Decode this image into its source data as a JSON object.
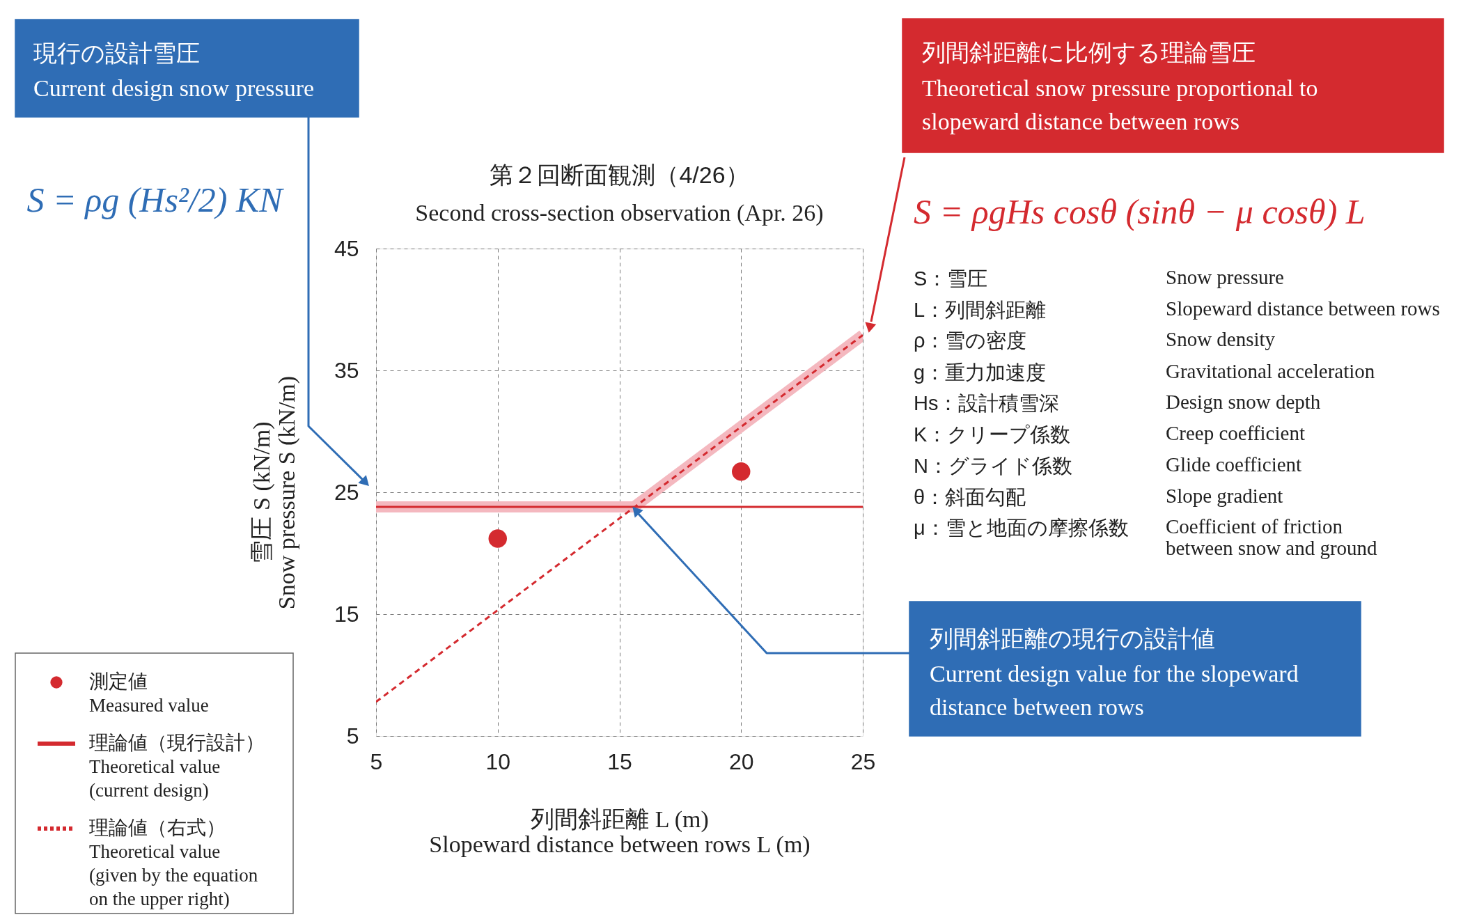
{
  "chart_data": {
    "type": "scatter",
    "title": "第２回断面観測（4/26）",
    "subtitle": "Second cross-section observation (Apr. 26)",
    "xlabel": "列間斜距離 L (m)\nSlopeward distance between rows L (m)",
    "ylabel": "雪圧 S (kN/m)\nSnow pressure S (kN/m)",
    "xlim": [
      5,
      25
    ],
    "xticks": [
      5,
      10,
      15,
      20,
      25
    ],
    "ylim": [
      5,
      45
    ],
    "yticks": [
      5,
      15,
      25,
      35,
      45
    ],
    "grid": true,
    "legend": "bottom left",
    "series": [
      {
        "type": "line",
        "color": "#f4b8bf",
        "line_style": "solid",
        "x": [
          5,
          15.6,
          25
        ],
        "values": [
          23.8,
          23.8,
          37.9
        ]
      },
      {
        "name": "測定値\nMeasured value",
        "color": "#d42a2f",
        "marker": "circle",
        "x": [
          10,
          20
        ],
        "values": [
          21.2,
          26.7
        ]
      },
      {
        "type": "line",
        "name": "理論値（現行設計）\nTheoretical value\n(current design)",
        "color": "#d42a2f",
        "line_style": "solid",
        "x": [
          5,
          25
        ],
        "values": [
          23.8,
          23.8
        ]
      },
      {
        "type": "line",
        "name": "理論値（右式）\nTheoretical value\n(given by the equation\n  on the upper right)",
        "color": "#d42a2f",
        "line_style": "dashed",
        "x": [
          5,
          25
        ],
        "values": [
          7.8,
          37.9
        ]
      }
    ],
    "annotations": [
      "現行の設計雪圧\nCurrent design snow pressure",
      "S = ρg (Hs²/2) KN",
      "列間斜距離に比例する理論雪圧\nTheoretical snow pressure proportional to\nslopeward distance between rows",
      "S = ρgHs cosθ (sinθ − μ cosθ) L",
      "S：雪圧",
      "L：列間斜距離",
      "ρ：雪の密度",
      "g：重力加速度",
      "Hs：設計積雪深",
      "K：クリープ係数",
      "N：グライド係数",
      "θ：斜面勾配",
      "μ：雪と地面の摩擦係数",
      "Snow pressure",
      "Slopeward distance between rows",
      "Snow density",
      "Gravitational acceleration",
      "Design snow depth",
      "Creep coefficient",
      "Glide coefficient",
      "Slope gradient",
      "Coefficient of friction\nbetween snow and ground",
      "列間斜距離の現行の設計値\nCurrent design value for the slopeward distance between rows"
    ]
  }
}
